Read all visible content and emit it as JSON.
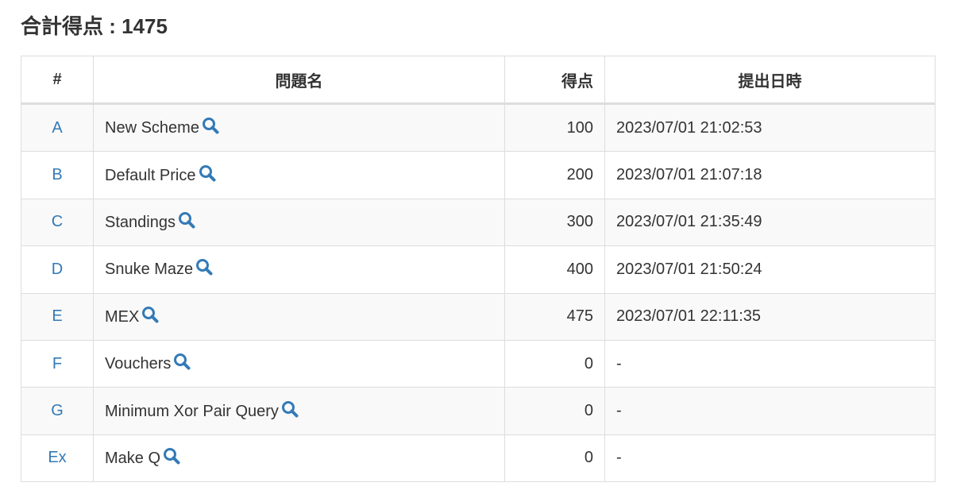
{
  "title": "合計得点 : 1475",
  "colors": {
    "link": "#337ab7",
    "border": "#dddddd",
    "stripe": "#f9f9f9"
  },
  "table": {
    "headers": [
      "#",
      "問題名",
      "得点",
      "提出日時"
    ],
    "rows": [
      {
        "id": "A",
        "name": "New Scheme",
        "score": "100",
        "time": "2023/07/01 21:02:53"
      },
      {
        "id": "B",
        "name": "Default Price",
        "score": "200",
        "time": "2023/07/01 21:07:18"
      },
      {
        "id": "C",
        "name": "Standings",
        "score": "300",
        "time": "2023/07/01 21:35:49"
      },
      {
        "id": "D",
        "name": "Snuke Maze",
        "score": "400",
        "time": "2023/07/01 21:50:24"
      },
      {
        "id": "E",
        "name": "MEX",
        "score": "475",
        "time": "2023/07/01 22:11:35"
      },
      {
        "id": "F",
        "name": "Vouchers",
        "score": "0",
        "time": "-"
      },
      {
        "id": "G",
        "name": "Minimum Xor Pair Query",
        "score": "0",
        "time": "-"
      },
      {
        "id": "Ex",
        "name": "Make Q",
        "score": "0",
        "time": "-"
      }
    ]
  }
}
